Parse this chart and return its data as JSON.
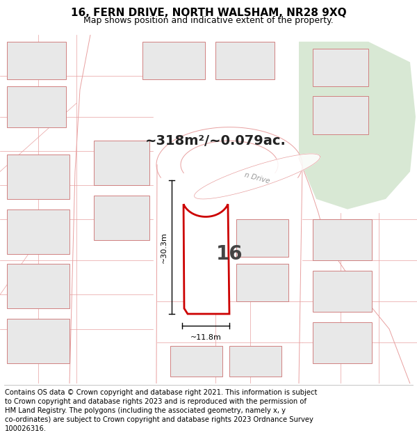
{
  "title": "16, FERN DRIVE, NORTH WALSHAM, NR28 9XQ",
  "subtitle": "Map shows position and indicative extent of the property.",
  "area_text": "~318m²/~0.079ac.",
  "street_label": "n Drive",
  "plot_number": "16",
  "dim_width": "~11.8m",
  "dim_height": "~30.3m",
  "footer_lines": [
    "Contains OS data © Crown copyright and database right 2021. This information is subject",
    "to Crown copyright and database rights 2023 and is reproduced with the permission of",
    "HM Land Registry. The polygons (including the associated geometry, namely x, y",
    "co-ordinates) are subject to Crown copyright and database rights 2023 Ordnance Survey",
    "100026316."
  ],
  "map_bg": "#f7f7f7",
  "plot_fill": "white",
  "plot_edge": "#cc0000",
  "road_line_color": "#e8a0a0",
  "building_fill": "#e8e8e8",
  "building_edge": "#d08080",
  "green_fill": "#d8e8d4",
  "title_fontsize": 11,
  "subtitle_fontsize": 9,
  "area_fontsize": 14,
  "plot_num_fontsize": 20,
  "footer_fontsize": 7.2,
  "dim_fontsize": 8
}
